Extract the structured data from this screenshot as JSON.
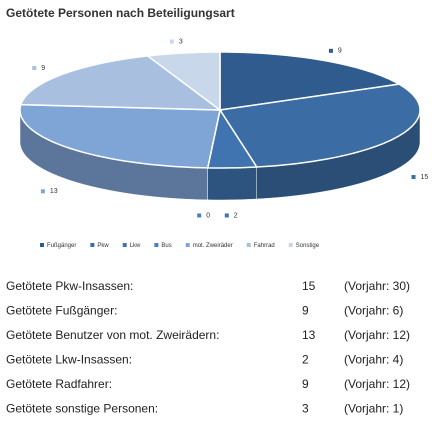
{
  "chart_data": {
    "type": "pie3d",
    "title": "Getötete Personen nach Beteiligungsart",
    "categories": [
      "Fußgänger",
      "Pkw",
      "Lkw",
      "Bus",
      "mot. Zweiräder",
      "Fahrrad",
      "Sonstige"
    ],
    "values": [
      9,
      15,
      2,
      0,
      13,
      9,
      3
    ],
    "colors": [
      "#2f5b8e",
      "#3b6ca3",
      "#3f74b0",
      "#4a80c0",
      "#7fa4d6",
      "#a8bfe0",
      "#c9d7eb"
    ]
  },
  "table": {
    "rows": [
      [
        "Getötete Pkw-Insassen:",
        15,
        "(Vorjahr: 30)"
      ],
      [
        "Getötete Fußgänger:",
        9,
        "(Vorjahr: 6)"
      ],
      [
        "Getötete Benutzer von mot. Zweirädern:",
        13,
        "(Vorjahr: 12)"
      ],
      [
        "Getötete Lkw-Insassen:",
        2,
        "(Vorjahr: 4)"
      ],
      [
        "Getötete Radfahrer:",
        9,
        "(Vorjahr: 12)"
      ],
      [
        "Getötete sonstige Personen:",
        3,
        "(Vorjahr: 1)"
      ]
    ]
  }
}
